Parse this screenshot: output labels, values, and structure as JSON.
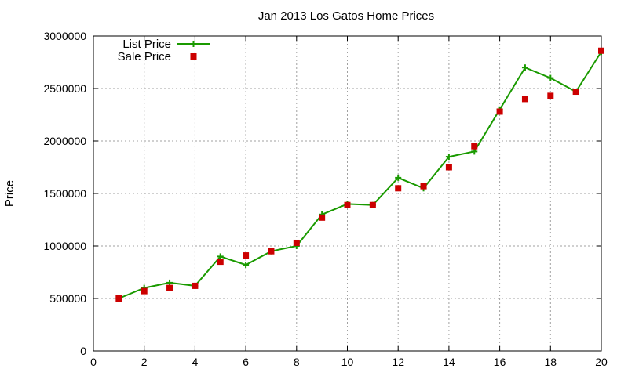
{
  "chart_data": {
    "type": "line",
    "title": "Jan 2013 Los Gatos Home Prices",
    "xlabel": "",
    "ylabel": "Price",
    "xlim": [
      0,
      20
    ],
    "ylim": [
      0,
      3000000
    ],
    "x_ticks": [
      0,
      2,
      4,
      6,
      8,
      10,
      12,
      14,
      16,
      18,
      20
    ],
    "y_ticks": [
      0,
      500000,
      1000000,
      1500000,
      2000000,
      2500000,
      3000000
    ],
    "x_tick_labels": [
      "0",
      "2",
      "4",
      "6",
      "8",
      "10",
      "12",
      "14",
      "16",
      "18",
      "20"
    ],
    "y_tick_labels": [
      "0",
      "500000",
      "1000000",
      "1500000",
      "2000000",
      "2500000",
      "3000000"
    ],
    "grid": true,
    "legend_position": "top-left",
    "x": [
      1,
      2,
      3,
      4,
      5,
      6,
      7,
      8,
      9,
      10,
      11,
      12,
      13,
      14,
      15,
      16,
      17,
      18,
      19,
      20
    ],
    "series": [
      {
        "name": "List Price",
        "style": "linespoints",
        "marker": "plus",
        "color": "#1a9a00",
        "values": [
          500000,
          600000,
          650000,
          620000,
          900000,
          820000,
          950000,
          1000000,
          1300000,
          1400000,
          1390000,
          1650000,
          1550000,
          1850000,
          1900000,
          2300000,
          2700000,
          2600000,
          2470000,
          2850000
        ]
      },
      {
        "name": "Sale Price",
        "style": "points",
        "marker": "filled-square",
        "color": "#cc0000",
        "values": [
          500000,
          570000,
          600000,
          620000,
          850000,
          910000,
          950000,
          1030000,
          1270000,
          1390000,
          1390000,
          1550000,
          1570000,
          1750000,
          1950000,
          2280000,
          2400000,
          2430000,
          2470000,
          2860000
        ]
      }
    ]
  }
}
